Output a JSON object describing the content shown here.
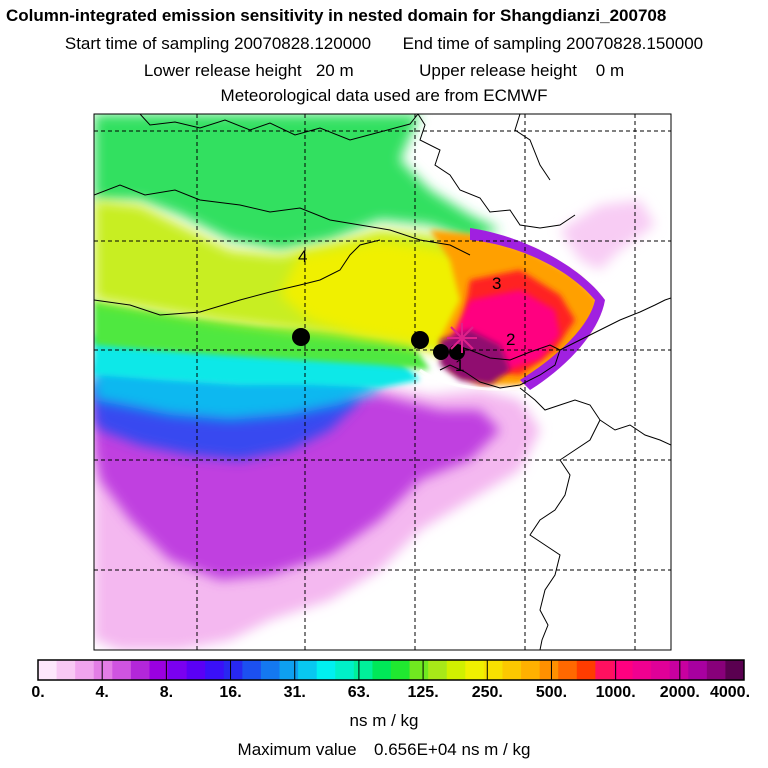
{
  "title": "Column-integrated emission sensitivity in nested domain for Shangdianzi_200708",
  "sampling": {
    "start_label": "Start time of sampling 20070828.120000",
    "end_label": "End time of sampling 20070828.150000"
  },
  "release": {
    "lower_label": "Lower release height   20 m",
    "upper_label": "Upper release height    0 m"
  },
  "met_label": "Meteorological data used are from ECMWF",
  "map": {
    "numbers": [
      "4",
      "3",
      "2",
      "1"
    ]
  },
  "colorbar": {
    "labels": [
      "0.",
      "4.",
      "8.",
      "16.",
      "31.",
      "63.",
      "125.",
      "250.",
      "500.",
      "1000.",
      "2000.",
      "4000."
    ],
    "colors": [
      "#fde7fb",
      "#f8c8f4",
      "#f0a4ee",
      "#e37ee6",
      "#cf54e0",
      "#b327d9",
      "#9a00e0",
      "#7a00f0",
      "#5a00f5",
      "#3a10f8",
      "#2828f0",
      "#1c50f0",
      "#1478f0",
      "#0ea0f0",
      "#08c8f0",
      "#00f0f0",
      "#00f0c8",
      "#00f09a",
      "#00e858",
      "#20e830",
      "#70e820",
      "#a8e818",
      "#d0f000",
      "#f0f000",
      "#f8e000",
      "#fcc800",
      "#ffb000",
      "#ff9000",
      "#ff6800",
      "#ff3c00",
      "#ff1060",
      "#ff0080",
      "#f00090",
      "#e00098",
      "#c800a0",
      "#a800a0",
      "#88007a",
      "#5a0050"
    ],
    "unit": "ns m / kg"
  },
  "max_value": {
    "prefix": "Maximum value",
    "value": "0.656E+04",
    "unit": "ns m / kg"
  }
}
